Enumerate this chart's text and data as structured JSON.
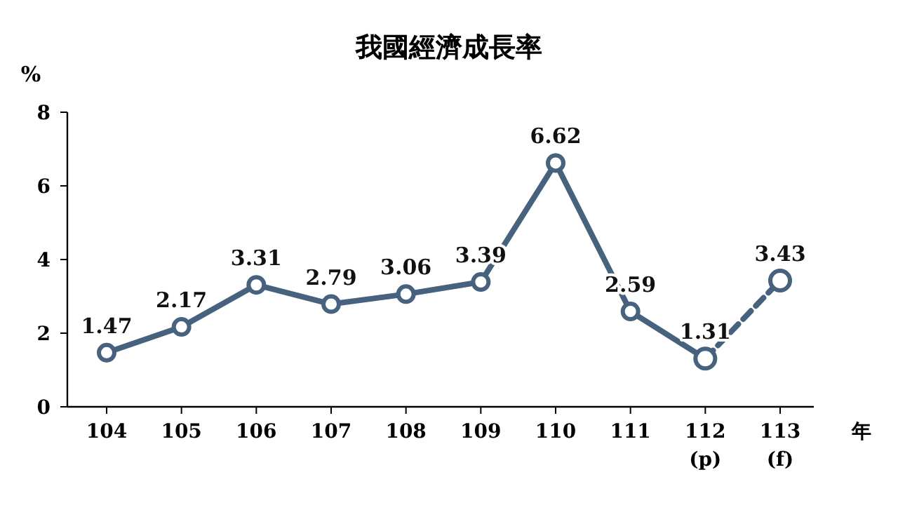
{
  "chart_data": {
    "type": "line",
    "title": "我國經濟成長率",
    "xlabel": "年",
    "ylabel": "%",
    "categories": [
      "104",
      "105",
      "106",
      "107",
      "108",
      "109",
      "110",
      "111",
      "112\n(p)",
      "113\n(f)"
    ],
    "series": [
      {
        "color": "#46627e",
        "values": [
          1.47,
          2.17,
          3.31,
          2.79,
          3.06,
          3.39,
          6.62,
          2.59,
          1.31,
          null
        ],
        "line_style": "solid",
        "value_labels": [
          "1.47",
          "2.17",
          "3.31",
          "2.79",
          "3.06",
          "3.39",
          "6.62",
          "2.59",
          "1.31",
          null
        ]
      },
      {
        "color": "#46627e",
        "values": [
          null,
          null,
          null,
          null,
          null,
          null,
          null,
          null,
          1.31,
          3.43
        ],
        "line_style": "dashed",
        "value_labels": [
          null,
          null,
          null,
          null,
          null,
          null,
          null,
          null,
          null,
          "3.43"
        ]
      }
    ],
    "ylim": [
      0,
      8
    ],
    "yticks": [
      0,
      2,
      4,
      6,
      8
    ],
    "grid": false,
    "marker": "circle"
  }
}
